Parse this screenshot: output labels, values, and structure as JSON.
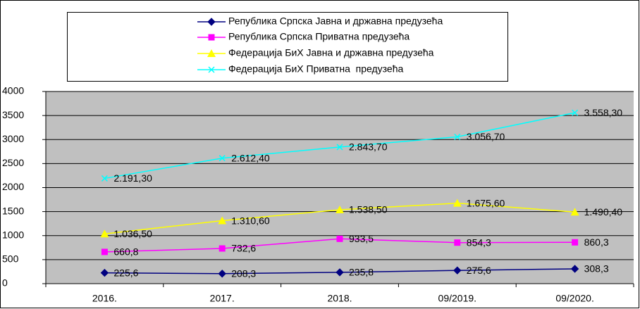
{
  "chart_data": {
    "type": "line",
    "categories": [
      "2016.",
      "2017.",
      "2018.",
      "09/2019.",
      "09/2020."
    ],
    "ylim": [
      0,
      4000
    ],
    "yticks": [
      0,
      500,
      1000,
      1500,
      2000,
      2500,
      3000,
      3500,
      4000
    ],
    "grid": true,
    "series": [
      {
        "name": "Република Српска Јавна и државна предузећа",
        "color": "#000080",
        "marker": "diamond",
        "values": [
          225.6,
          208.3,
          235.8,
          275.6,
          308.3
        ],
        "value_labels": [
          "225,6",
          "208,3",
          "235,8",
          "275,6",
          "308,3"
        ]
      },
      {
        "name": "Република Српска Приватна предузећа",
        "color": "#ff00ff",
        "marker": "square",
        "values": [
          660.8,
          732.6,
          933.5,
          854.3,
          860.3
        ],
        "value_labels": [
          "660,8",
          "732,6",
          "933,5",
          "854,3",
          "860,3"
        ]
      },
      {
        "name": "Федерација БиХ Јавна и државна предузећа",
        "color": "#ffff00",
        "marker": "triangle",
        "values": [
          1036.5,
          1310.6,
          1538.5,
          1675.6,
          1490.4
        ],
        "value_labels": [
          "1.036,50",
          "1.310,60",
          "1.538,50",
          "1.675,60",
          "1.490,40"
        ]
      },
      {
        "name": "Федерација БиХ Приватна  предузећа",
        "color": "#00ffff",
        "marker": "x",
        "values": [
          2191.3,
          2612.4,
          2843.7,
          3056.7,
          3558.3
        ],
        "value_labels": [
          "2.191,30",
          "2.612,40",
          "2.843,70",
          "3.056,70",
          "3.558,30"
        ]
      }
    ]
  }
}
